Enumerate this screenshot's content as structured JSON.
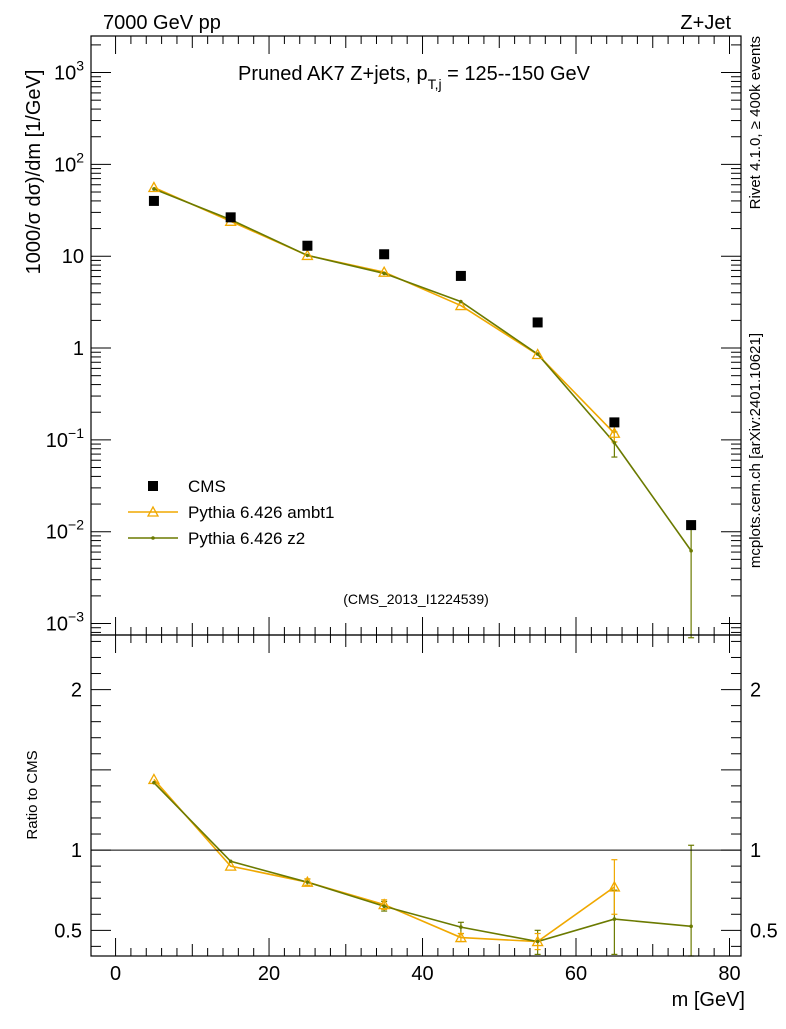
{
  "header": {
    "left": "7000 GeV pp",
    "right": "Z+Jet",
    "side_top": "Rivet 4.1.0, ≥ 400k events",
    "side_bottom": "mcplots.cern.ch [arXiv:2401.10621]",
    "analysis_tag": "(CMS_2013_I1224539)"
  },
  "colors": {
    "cms": "#000000",
    "ambt1": "#f0a800",
    "z2": "#6b7a00",
    "watermark": "#999999"
  },
  "chart_data": [
    {
      "type": "scatter",
      "scale": "log",
      "title_main": "Pruned AK7 Z+jets, p",
      "title_sub": "T,j",
      "title_rest": " = 125--150 GeV",
      "ylabel": "1000/σ   dσ)/dm [1/GeV]",
      "ylim": [
        0.00075,
        2500
      ],
      "yticks": [
        {
          "value": 0.001,
          "mant": "10",
          "exp": "−3"
        },
        {
          "value": 0.01,
          "mant": "10",
          "exp": "−2"
        },
        {
          "value": 0.1,
          "mant": "10",
          "exp": "−1"
        },
        {
          "value": 1,
          "mant": "1",
          "exp": ""
        },
        {
          "value": 10,
          "mant": "10",
          "exp": ""
        },
        {
          "value": 100,
          "mant": "10",
          "exp": "2"
        },
        {
          "value": 1000,
          "mant": "10",
          "exp": "3"
        }
      ],
      "legend": [
        "CMS",
        "Pythia 6.426 ambt1",
        "Pythia 6.426 z2"
      ],
      "x": [
        5,
        15,
        25,
        35,
        45,
        55,
        65,
        75
      ],
      "series": [
        {
          "name": "CMS",
          "values": [
            40,
            26.5,
            13,
            10.5,
            6.1,
            1.9,
            0.155,
            0.0118
          ]
        },
        {
          "name": "Pythia 6.426 ambt1",
          "values": [
            56,
            24,
            10.2,
            6.7,
            2.9,
            0.85,
            0.118,
            null
          ],
          "err_low": [
            null,
            null,
            null,
            null,
            null,
            null,
            0.095,
            null
          ],
          "err_high": [
            null,
            null,
            null,
            null,
            null,
            null,
            0.14,
            null
          ]
        },
        {
          "name": "Pythia 6.426 z2",
          "values": [
            54,
            25,
            10.2,
            6.5,
            3.2,
            0.86,
            0.093,
            0.0062
          ],
          "err_low": [
            null,
            null,
            null,
            null,
            null,
            null,
            0.065,
            0.0007
          ],
          "err_high": [
            null,
            null,
            null,
            null,
            null,
            null,
            0.122,
            0.0118
          ]
        }
      ]
    },
    {
      "type": "line",
      "ylabel": "Ratio to CMS",
      "ylim": [
        0.34,
        2.34
      ],
      "yticks": [
        0.5,
        1,
        2
      ],
      "ytick_labels": [
        "0.5",
        "1",
        "2"
      ],
      "reference": 1,
      "xlabel": "m [GeV]",
      "xlim": [
        -3.2,
        81.5
      ],
      "xticks": [
        0,
        20,
        40,
        60,
        80
      ],
      "xtick_labels": [
        "0",
        "20",
        "40",
        "60",
        "80"
      ],
      "x": [
        5,
        15,
        25,
        35,
        45,
        55,
        65,
        75
      ],
      "series": [
        {
          "name": "Pythia 6.426 ambt1",
          "values": [
            1.44,
            0.9,
            0.8,
            0.66,
            0.455,
            0.43,
            0.77,
            null
          ],
          "err_low": [
            null,
            null,
            0.78,
            0.63,
            0.43,
            0.38,
            0.6,
            null
          ],
          "err_high": [
            null,
            null,
            0.82,
            0.69,
            0.48,
            0.48,
            0.94,
            null
          ]
        },
        {
          "name": "Pythia 6.426 z2",
          "values": [
            1.42,
            0.93,
            0.8,
            0.65,
            0.52,
            0.43,
            0.57,
            0.525
          ],
          "err_low": [
            null,
            null,
            0.78,
            0.62,
            0.48,
            0.35,
            0.35,
            0.34
          ],
          "err_high": [
            null,
            null,
            0.82,
            0.68,
            0.55,
            0.5,
            0.75,
            1.03
          ]
        }
      ]
    }
  ]
}
